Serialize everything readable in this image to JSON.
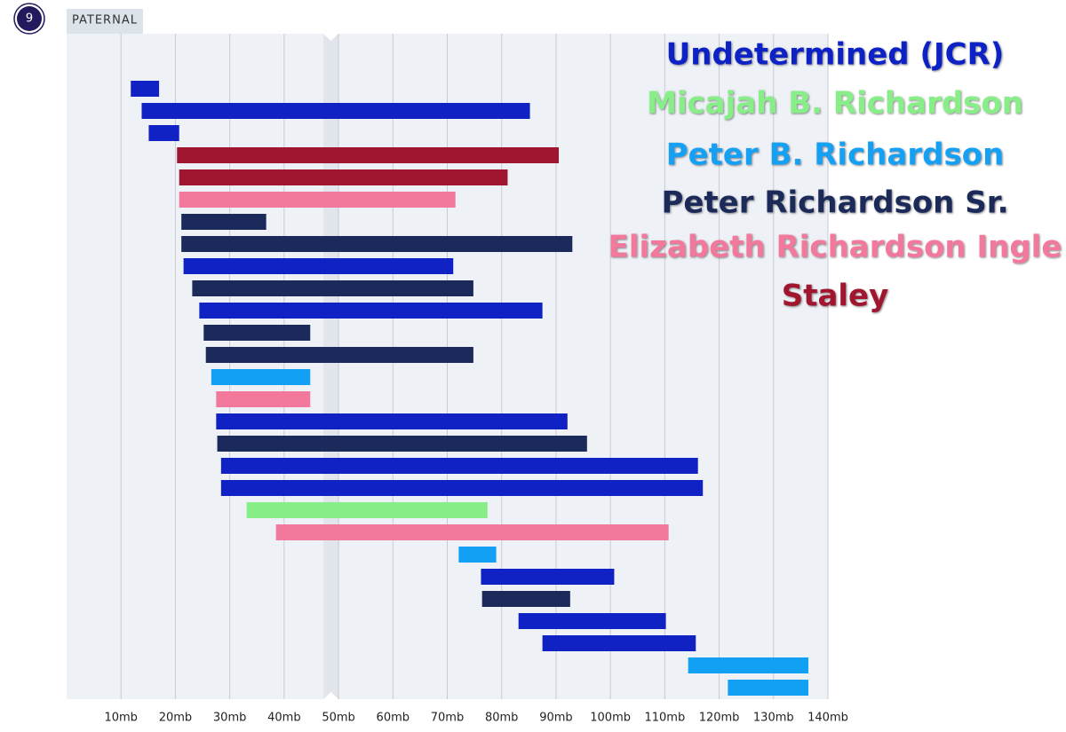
{
  "chart_data": {
    "type": "range-bar",
    "chromosome": 9,
    "label": "PATERNAL",
    "series": [
      {
        "name": "Undetermined (JCR)",
        "color": "#1122c4"
      },
      {
        "name": "Micajah B. Richardson",
        "color": "#88ee88"
      },
      {
        "name": "Peter B. Richardson",
        "color": "#12a0f4"
      },
      {
        "name": "Peter Richardson Sr.",
        "color": "#1b2a5a"
      },
      {
        "name": "Elizabeth Richardson Ingle",
        "color": "#f2789c"
      },
      {
        "name": "Staley",
        "color": "#a0152f"
      }
    ],
    "segments": [
      {
        "series": 0,
        "start": 11.8,
        "end": 17.0
      },
      {
        "series": 0,
        "start": 13.8,
        "end": 85.2
      },
      {
        "series": 0,
        "start": 15.1,
        "end": 20.7
      },
      {
        "series": 5,
        "start": 20.3,
        "end": 90.5
      },
      {
        "series": 5,
        "start": 20.7,
        "end": 81.1
      },
      {
        "series": 4,
        "start": 20.7,
        "end": 71.5
      },
      {
        "series": 3,
        "start": 21.1,
        "end": 36.7
      },
      {
        "series": 3,
        "start": 21.1,
        "end": 93.0
      },
      {
        "series": 0,
        "start": 21.5,
        "end": 71.1
      },
      {
        "series": 3,
        "start": 23.1,
        "end": 74.8
      },
      {
        "series": 0,
        "start": 24.4,
        "end": 87.5
      },
      {
        "series": 3,
        "start": 25.2,
        "end": 44.8
      },
      {
        "series": 3,
        "start": 25.6,
        "end": 74.8
      },
      {
        "series": 2,
        "start": 26.6,
        "end": 44.8
      },
      {
        "series": 4,
        "start": 27.5,
        "end": 44.8
      },
      {
        "series": 0,
        "start": 27.5,
        "end": 92.1
      },
      {
        "series": 3,
        "start": 27.7,
        "end": 95.7
      },
      {
        "series": 0,
        "start": 28.4,
        "end": 116.1
      },
      {
        "series": 0,
        "start": 28.4,
        "end": 117.0
      },
      {
        "series": 1,
        "start": 33.1,
        "end": 77.4
      },
      {
        "series": 4,
        "start": 38.5,
        "end": 110.7
      },
      {
        "series": 2,
        "start": 72.1,
        "end": 79.0
      },
      {
        "series": 0,
        "start": 76.2,
        "end": 100.7
      },
      {
        "series": 3,
        "start": 76.4,
        "end": 92.6
      },
      {
        "series": 0,
        "start": 83.1,
        "end": 110.2
      },
      {
        "series": 0,
        "start": 87.5,
        "end": 115.7
      },
      {
        "series": 2,
        "start": 114.3,
        "end": 136.4
      },
      {
        "series": 2,
        "start": 121.6,
        "end": 136.4
      }
    ],
    "xlim": [
      0,
      140
    ],
    "xticks": [
      {
        "value": 10,
        "label": "10mb"
      },
      {
        "value": 20,
        "label": "20mb"
      },
      {
        "value": 30,
        "label": "30mb"
      },
      {
        "value": 40,
        "label": "40mb"
      },
      {
        "value": 50,
        "label": "50mb"
      },
      {
        "value": 60,
        "label": "60mb"
      },
      {
        "value": 70,
        "label": "70mb"
      },
      {
        "value": 80,
        "label": "80mb"
      },
      {
        "value": 90,
        "label": "90mb"
      },
      {
        "value": 100,
        "label": "100mb"
      },
      {
        "value": 110,
        "label": "110mb"
      },
      {
        "value": 120,
        "label": "120mb"
      },
      {
        "value": 130,
        "label": "130mb"
      },
      {
        "value": 140,
        "label": "140mb"
      }
    ],
    "grid": true
  }
}
